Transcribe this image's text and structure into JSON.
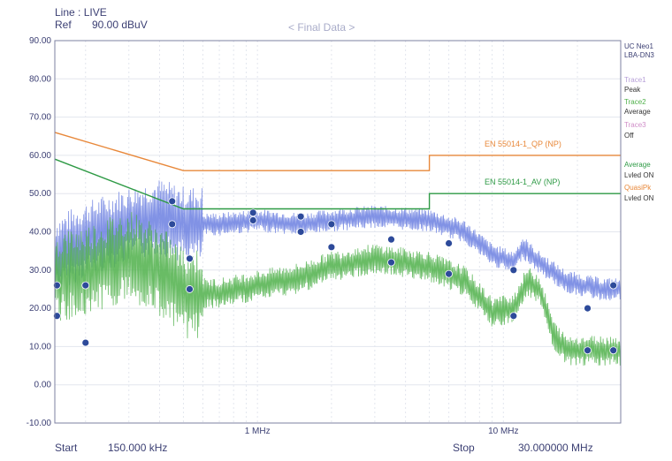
{
  "header": {
    "line_label": "Line : LIVE",
    "ref_label": "Ref",
    "ref_value": "90.00 dBuV",
    "title": "< Final Data >"
  },
  "side_legend": {
    "std1": "UC Neo1",
    "std2": "LBA-DN3",
    "trace1_name": "Trace1",
    "trace1_mode": "Peak",
    "trace2_name": "Trace2",
    "trace2_mode": "Average",
    "trace3_name": "Trace3",
    "trace3_mode": "Off",
    "avg_name": "Average",
    "avg_mode": "Lvled ON",
    "qp_name": "QuasiPk",
    "qp_mode": "Lvled ON"
  },
  "footer": {
    "start_label": "Start",
    "start_value": "150.000 kHz",
    "stop_label": "Stop",
    "stop_value": "30.000000 MHz"
  },
  "colors": {
    "peak": "#6b7fe0",
    "average": "#4fb04a",
    "qp_limit": "#e8883a",
    "av_limit": "#2e9a45",
    "marker": "#2d4a9a",
    "grid": "#e3e6ee"
  },
  "chart_data": {
    "type": "line",
    "title": "< Final Data >",
    "x_scale": "log",
    "xlim_mhz": [
      0.15,
      30
    ],
    "ylim": [
      -10,
      90
    ],
    "ylabel_unit": "dBuV",
    "y_ticks": [
      "90.00",
      "80.00",
      "70.00",
      "60.00",
      "50.00",
      "40.00",
      "30.00",
      "20.00",
      "10.00",
      "0.00",
      "-10.00"
    ],
    "x_ticks": [
      {
        "value": 1,
        "label": "1 MHz"
      },
      {
        "value": 10,
        "label": "10 MHz"
      }
    ],
    "limit_lines": [
      {
        "name": "EN 55014-1_QP (NP)",
        "points": [
          [
            0.15,
            66
          ],
          [
            0.5,
            56
          ],
          [
            5,
            56
          ],
          [
            5,
            60
          ],
          [
            30,
            60
          ]
        ]
      },
      {
        "name": "EN 55014-1_AV (NP)",
        "points": [
          [
            0.15,
            59
          ],
          [
            0.5,
            46
          ],
          [
            5,
            46
          ],
          [
            5,
            50
          ],
          [
            30,
            50
          ]
        ]
      }
    ],
    "series": [
      {
        "name": "Peak",
        "points": [
          [
            0.15,
            34
          ],
          [
            0.2,
            38
          ],
          [
            0.3,
            42
          ],
          [
            0.4,
            44
          ],
          [
            0.5,
            42
          ],
          [
            0.7,
            42
          ],
          [
            1,
            43
          ],
          [
            1.5,
            42
          ],
          [
            2,
            43
          ],
          [
            3,
            44
          ],
          [
            5,
            43
          ],
          [
            7,
            40
          ],
          [
            9,
            34
          ],
          [
            11,
            32
          ],
          [
            12,
            36
          ],
          [
            14,
            32
          ],
          [
            18,
            27
          ],
          [
            25,
            25
          ],
          [
            30,
            25
          ]
        ]
      },
      {
        "name": "Average",
        "points": [
          [
            0.15,
            28
          ],
          [
            0.2,
            30
          ],
          [
            0.3,
            34
          ],
          [
            0.4,
            30
          ],
          [
            0.5,
            24
          ],
          [
            0.7,
            24
          ],
          [
            1,
            26
          ],
          [
            1.5,
            28
          ],
          [
            2,
            31
          ],
          [
            3,
            33
          ],
          [
            5,
            31
          ],
          [
            7,
            27
          ],
          [
            9,
            19
          ],
          [
            11,
            20
          ],
          [
            12.5,
            27
          ],
          [
            14,
            25
          ],
          [
            16,
            13
          ],
          [
            18,
            9
          ],
          [
            25,
            9
          ],
          [
            30,
            9
          ]
        ]
      }
    ],
    "markers": [
      {
        "series": "QP",
        "points": [
          [
            0.153,
            26
          ],
          [
            0.2,
            26
          ],
          [
            0.45,
            48
          ],
          [
            0.53,
            33
          ],
          [
            0.96,
            45
          ],
          [
            1.5,
            44
          ],
          [
            2,
            42
          ],
          [
            3.5,
            38
          ],
          [
            6,
            37
          ],
          [
            11,
            30
          ],
          [
            22,
            20
          ],
          [
            28,
            26
          ]
        ]
      },
      {
        "series": "AV",
        "points": [
          [
            0.153,
            18
          ],
          [
            0.2,
            11
          ],
          [
            0.45,
            42
          ],
          [
            0.53,
            25
          ],
          [
            0.96,
            43
          ],
          [
            1.5,
            40
          ],
          [
            2,
            36
          ],
          [
            3.5,
            32
          ],
          [
            6,
            29
          ],
          [
            11,
            18
          ],
          [
            22,
            9
          ],
          [
            28,
            9
          ]
        ]
      }
    ],
    "limit_labels": [
      "EN 55014-1_QP (NP)",
      "EN 55014-1_AV (NP)"
    ]
  }
}
